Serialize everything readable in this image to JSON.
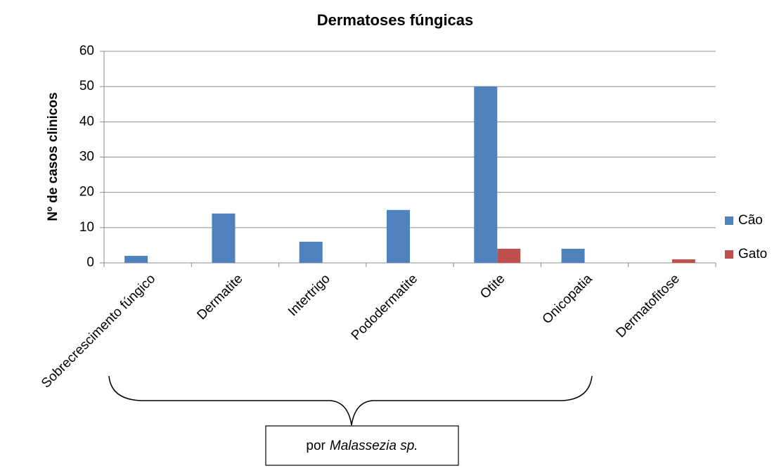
{
  "chart_data": {
    "type": "bar",
    "title": "Dermatoses fúngicas",
    "y_label": "Nº de casos clinicos",
    "categories": [
      "Sobrecrescimento fúngico",
      "Dermatite",
      "Intertrigo",
      "Pododermatite",
      "Otite",
      "Onicopatia",
      "Dermatofitose"
    ],
    "series": [
      {
        "name": "Cão",
        "color": "#4f81bd",
        "values": [
          2,
          14,
          6,
          15,
          50,
          4,
          0
        ]
      },
      {
        "name": "Gato",
        "color": "#c0504d",
        "values": [
          0,
          0,
          0,
          0,
          4,
          0,
          1
        ]
      }
    ],
    "ylim": [
      0,
      60
    ],
    "yticks": [
      0,
      10,
      20,
      30,
      40,
      50,
      60
    ],
    "grid": true,
    "legend": "right",
    "annotation": [
      "por",
      "Malassezia sp."
    ]
  }
}
